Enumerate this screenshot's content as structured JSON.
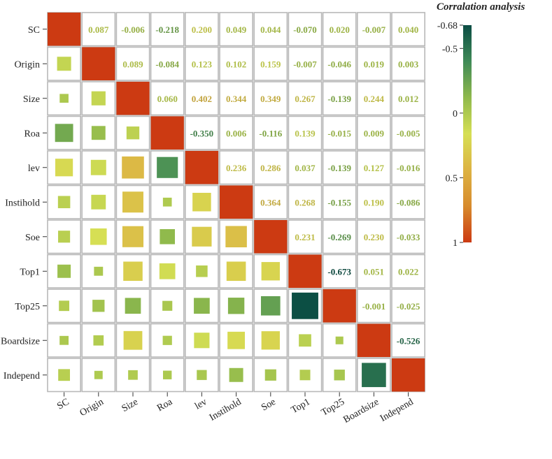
{
  "chart_data": {
    "type": "heatmap",
    "title": "Corralation analysis",
    "variables": [
      "SC",
      "Origin",
      "Size",
      "Roa",
      "lev",
      "Instihold",
      "Soe",
      "Top1",
      "Top25",
      "Boardsize",
      "Independ"
    ],
    "matrix": [
      [
        1,
        0.087,
        -0.006,
        -0.218,
        0.2,
        0.049,
        0.044,
        -0.07,
        0.02,
        -0.007,
        0.04
      ],
      [
        0.087,
        1,
        0.089,
        -0.084,
        0.123,
        0.102,
        0.159,
        -0.007,
        -0.046,
        0.019,
        0.003
      ],
      [
        -0.006,
        0.089,
        1,
        0.06,
        0.402,
        0.344,
        0.349,
        0.267,
        -0.139,
        0.244,
        0.012
      ],
      [
        -0.218,
        -0.084,
        0.06,
        1,
        -0.35,
        0.006,
        -0.116,
        0.139,
        -0.015,
        0.009,
        -0.005
      ],
      [
        0.2,
        0.123,
        0.402,
        -0.35,
        1,
        0.236,
        0.286,
        0.037,
        -0.139,
        0.127,
        -0.016
      ],
      [
        0.049,
        0.102,
        0.344,
        0.006,
        0.236,
        1,
        0.364,
        0.268,
        -0.155,
        0.19,
        -0.086
      ],
      [
        0.044,
        0.159,
        0.349,
        -0.116,
        0.286,
        0.364,
        1,
        0.231,
        -0.269,
        0.23,
        -0.033
      ],
      [
        -0.07,
        -0.007,
        0.267,
        0.139,
        0.037,
        0.268,
        0.231,
        1,
        -0.673,
        0.051,
        0.022
      ],
      [
        0.02,
        -0.046,
        -0.139,
        -0.015,
        -0.139,
        -0.155,
        -0.269,
        -0.673,
        1,
        -0.001,
        -0.025
      ],
      [
        -0.007,
        0.019,
        0.244,
        0.009,
        0.127,
        0.19,
        0.23,
        0.051,
        -0.001,
        1,
        -0.526
      ],
      [
        0.04,
        0.003,
        0.012,
        -0.005,
        -0.016,
        -0.086,
        -0.033,
        0.022,
        -0.025,
        -0.526,
        1
      ]
    ],
    "upper_triangle": "text",
    "lower_triangle": "squares",
    "diagonal": "filled",
    "colorbar": {
      "range": [
        -0.68,
        1
      ],
      "ticks": [
        -0.68,
        -0.5,
        0,
        0.5,
        1
      ],
      "tick_labels": [
        "-0.68",
        "-0.5",
        "0",
        "0.5",
        "1"
      ],
      "colors": [
        "#0b4d44",
        "#3f8a57",
        "#8fb94c",
        "#d6df54",
        "#ddb343",
        "#d78b2d",
        "#cc3a12"
      ]
    }
  }
}
